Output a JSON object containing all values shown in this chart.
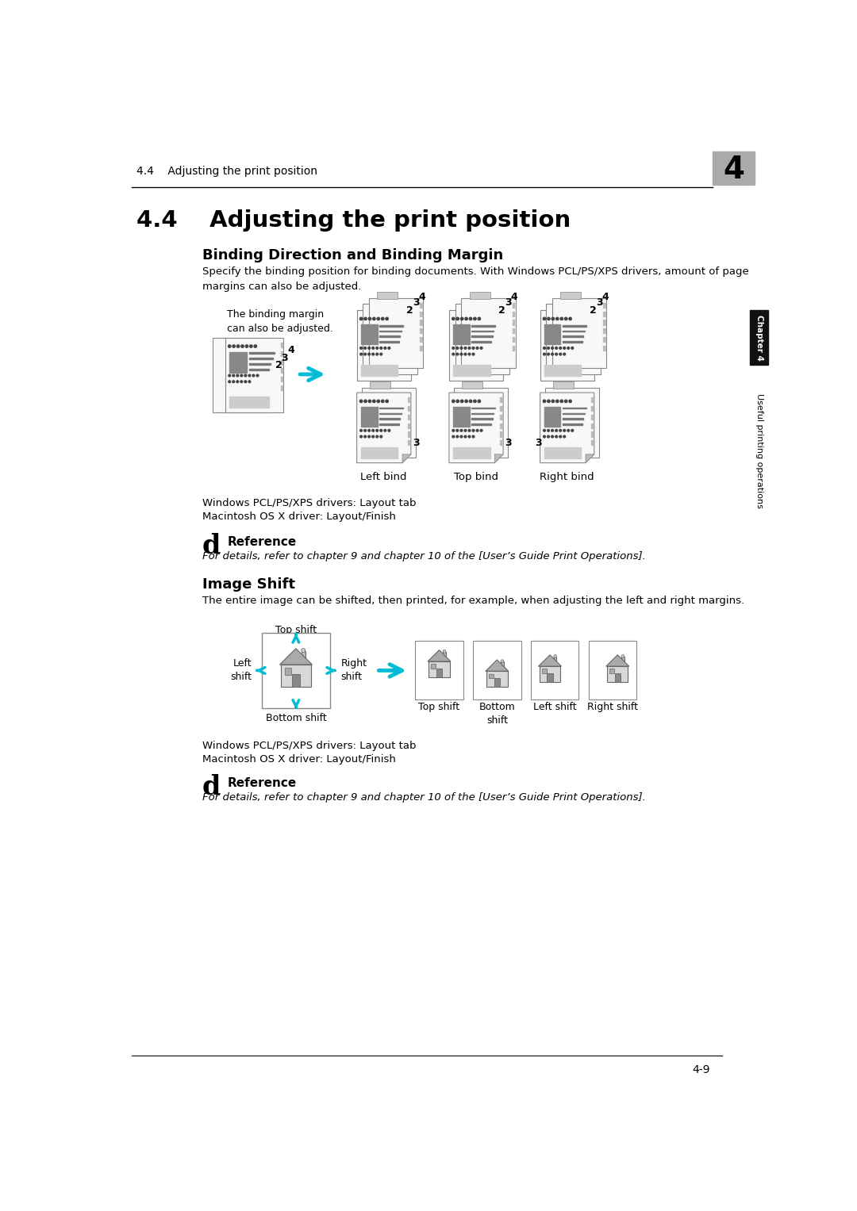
{
  "page_title_section": "4.4    Adjusting the print position",
  "chapter_number": "4",
  "main_title": "4.4    Adjusting the print position",
  "section1_title": "Binding Direction and Binding Margin",
  "section1_body": "Specify the binding position for binding documents. With Windows PCL/PS/XPS drivers, amount of page\nmargins can also be adjusted.",
  "binding_margin_note": "The binding margin\ncan also be adjusted.",
  "bind_labels": [
    "Left bind",
    "Top bind",
    "Right bind"
  ],
  "section2_title": "Image Shift",
  "section2_body": "The entire image can be shifted, then printed, for example, when adjusting the left and right margins.",
  "shift_labels_below": [
    "Top shift",
    "Bottom\nshift",
    "Left shift",
    "Right shift"
  ],
  "driver_line1": "Windows PCL/PS/XPS drivers: Layout tab",
  "driver_line2": "Macintosh OS X driver: Layout/Finish",
  "reference_label": "Reference",
  "reference_text": "For details, refer to chapter 9 and chapter 10 of the [User’s Guide Print Operations].",
  "page_number": "4-9",
  "sidebar_chapter": "Chapter 4",
  "sidebar_text": "Useful printing operations",
  "bg_color": "#ffffff",
  "header_line_color": "#000000",
  "footer_line_color": "#000000",
  "arrow_color": "#00bcd4",
  "doc_page_color": "#f8f8f8",
  "doc_border_color": "#888888",
  "doc_tab_color": "#cccccc",
  "doc_dark_block": "#888888",
  "doc_dot_color": "#444444",
  "doc_line_color": "#777777",
  "doc_bottom_bar": "#cccccc",
  "house_roof_color": "#aaaaaa",
  "house_body_color": "#d8d8d8",
  "house_door_color": "#888888",
  "house_chimney_color": "#bbbbbb",
  "house_border": "#666666",
  "house_box_border": "#888888"
}
